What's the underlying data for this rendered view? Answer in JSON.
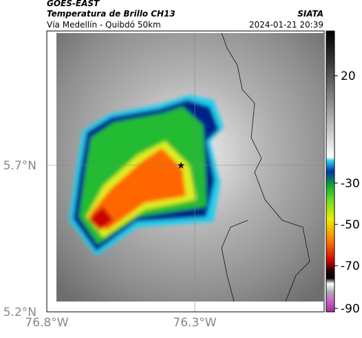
{
  "header": {
    "satellite": "GOES-EAST",
    "product": "Temperatura de Brillo CH13",
    "route": "Vía Medellín - Quibdó 50km",
    "source": "SIATA",
    "datetime": "2024-01-21 20:39"
  },
  "map": {
    "lon_labels": [
      "76.8°W",
      "76.3°W"
    ],
    "lat_labels": [
      "5.7°N",
      "5.2°N"
    ]
  },
  "colorbar": {
    "labels": [
      20,
      -30,
      -50,
      -70,
      -90
    ]
  }
}
